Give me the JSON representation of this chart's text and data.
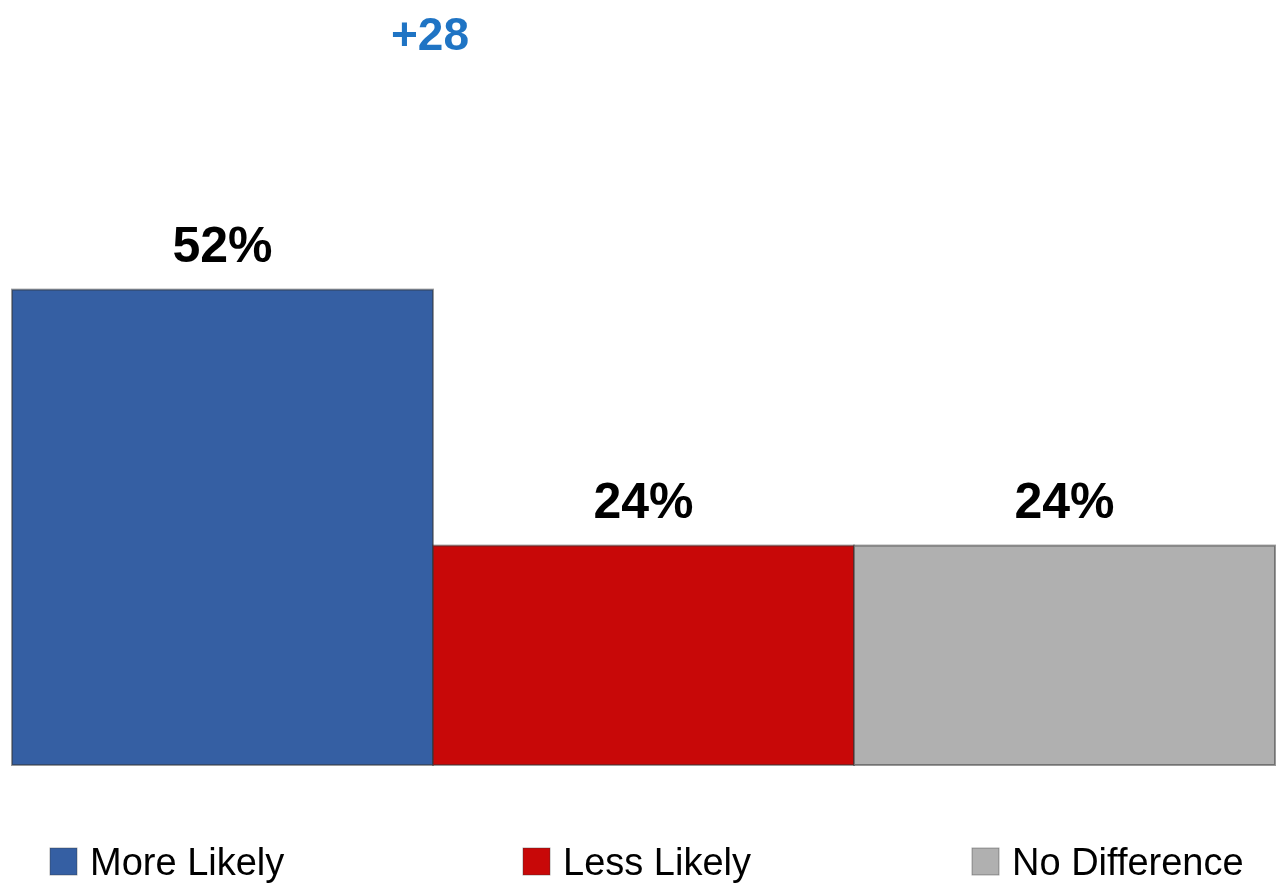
{
  "chart_data": {
    "type": "bar",
    "categories": [
      null
    ],
    "series": [
      {
        "name": "More Likely",
        "color": "#355fa3",
        "values": [
          52
        ],
        "value_labels": [
          "52%"
        ]
      },
      {
        "name": "Less Likely",
        "color": "#c80808",
        "values": [
          24
        ],
        "value_labels": [
          "24%"
        ]
      },
      {
        "name": "No Difference",
        "color": "#b0b0b0",
        "values": [
          24
        ],
        "value_labels": [
          "24%"
        ]
      }
    ],
    "legend": "bottom",
    "annotations": [
      "+28"
    ]
  }
}
